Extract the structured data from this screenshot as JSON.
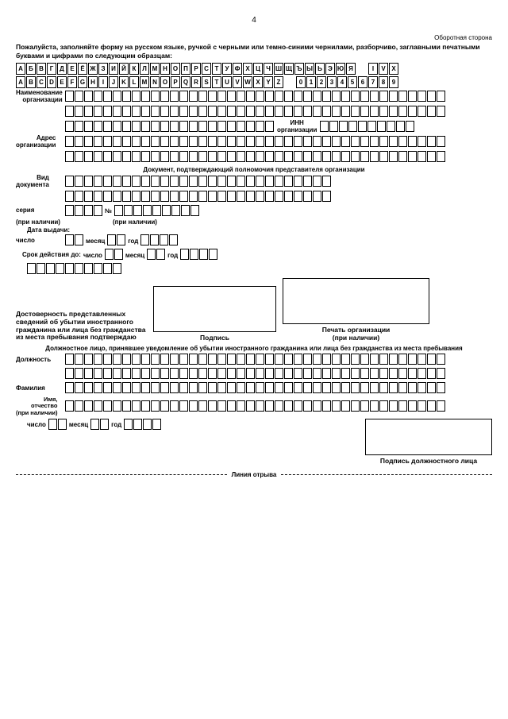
{
  "page_number": "4",
  "top_right": "Оборотная сторона",
  "instructions": "Пожалуйста, заполняйте форму на русском языке, ручкой с черными или темно-синими чернилами, разборчиво, заглавными печатными буквами и цифрами по следующим образцам:",
  "sample_row1_a": [
    "А",
    "Б",
    "В",
    "Г",
    "Д",
    "Е",
    "Ё",
    "Ж",
    "З",
    "И",
    "Й",
    "К",
    "Л",
    "М",
    "Н",
    "О",
    "П",
    "Р",
    "С",
    "Т",
    "У",
    "Ф",
    "Х",
    "Ц",
    "Ч",
    "Ш",
    "Щ",
    "Ъ",
    "Ы",
    "Ь",
    "Э",
    "Ю",
    "Я"
  ],
  "sample_row1_b": [
    "I",
    "V",
    "X"
  ],
  "sample_row2_a": [
    "A",
    "B",
    "C",
    "D",
    "E",
    "F",
    "G",
    "H",
    "I",
    "J",
    "K",
    "L",
    "M",
    "N",
    "O",
    "P",
    "Q",
    "R",
    "S",
    "T",
    "U",
    "V",
    "W",
    "X",
    "Y",
    "Z"
  ],
  "sample_row2_b": [
    "0",
    "1",
    "2",
    "3",
    "4",
    "5",
    "6",
    "7",
    "8",
    "9"
  ],
  "labels": {
    "org_name": "Наименование\nорганизации",
    "inn": "ИНН\nорганизации",
    "org_addr": "Адрес\nорганизации",
    "doc_section": "Документ, подтверждающий полномочия представителя организации",
    "doc_type": "Вид\nдокумента",
    "series": "серия",
    "number": "№",
    "if_present": "(при наличии)",
    "issue_date": "Дата выдачи:",
    "day": "число",
    "month": "месяц",
    "year": "год",
    "valid_until": "Срок действия до:",
    "confirm": "Достоверность представленных сведений об убытии иностранного гражданина или лица без гражданства из места пребывания подтверждаю",
    "signature": "Подпись",
    "stamp": "Печать организации\n(при наличии)",
    "official_section": "Должностное лицо, принявшее уведомление об убытии иностранного гражданина или лица без гражданства из места пребывания",
    "position": "Должность",
    "surname": "Фамилия",
    "name_patronym": "Имя,\nотчество\n(при наличии)",
    "official_sig": "Подпись должностного лица",
    "tear_line": "Линия отрыва"
  },
  "style": {
    "cell_border": "#000000",
    "bg": "#ffffff",
    "text": "#000000"
  }
}
